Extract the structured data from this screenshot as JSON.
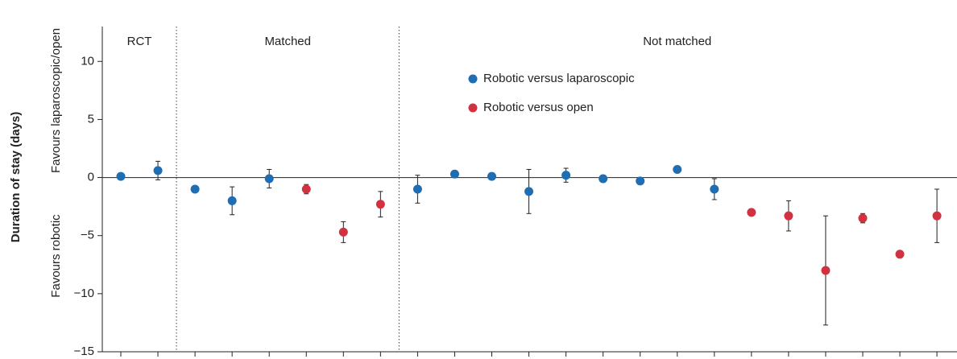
{
  "chart_data": {
    "type": "dot-error",
    "ylabel": "Duration of stay (days)",
    "ylabel_upper": "Favours laparoscopic/open",
    "ylabel_lower": "Favours robotic",
    "categories": [
      null,
      null,
      null,
      null,
      null,
      null,
      null,
      null,
      null,
      null,
      null,
      null,
      null,
      null,
      null,
      null,
      null,
      null,
      null,
      null,
      null,
      null,
      null
    ],
    "sections": [
      {
        "label": "RCT",
        "span": [
          0,
          1
        ]
      },
      {
        "label": "Matched",
        "span": [
          2,
          7
        ]
      },
      {
        "label": "Not matched",
        "span": [
          8,
          22
        ]
      }
    ],
    "series": [
      {
        "name": "Robotic versus laparoscopic",
        "color": "#1f6db3",
        "values": [
          0.1,
          0.6,
          -1.0,
          -2.0,
          -0.1,
          null,
          null,
          null,
          -1.0,
          0.3,
          0.1,
          -1.2,
          0.2,
          -0.1,
          -0.3,
          0.7,
          -1.0,
          null,
          null,
          null,
          null,
          null,
          null
        ],
        "errors": [
          null,
          0.8,
          null,
          1.2,
          0.8,
          null,
          null,
          null,
          1.2,
          null,
          0.3,
          1.9,
          0.6,
          null,
          null,
          null,
          0.9,
          null,
          null,
          null,
          null,
          null,
          null
        ]
      },
      {
        "name": "Robotic versus open",
        "color": "#d2323f",
        "values": [
          null,
          null,
          null,
          null,
          null,
          -1.0,
          -4.7,
          -2.3,
          null,
          null,
          null,
          null,
          null,
          null,
          null,
          null,
          null,
          -3.0,
          -3.3,
          -8.0,
          -3.5,
          -6.6,
          -3.3
        ],
        "errors": [
          null,
          null,
          null,
          null,
          null,
          0.4,
          0.9,
          1.1,
          null,
          null,
          null,
          null,
          null,
          null,
          null,
          null,
          null,
          null,
          1.3,
          4.7,
          0.4,
          null,
          2.3
        ]
      }
    ],
    "ylim": [
      -15,
      13
    ],
    "yticks": [
      {
        "value": -15,
        "label": "−15"
      },
      {
        "value": -10,
        "label": "−10"
      },
      {
        "value": -5,
        "label": "−5"
      },
      0,
      5,
      10
    ],
    "zero_line": true
  }
}
